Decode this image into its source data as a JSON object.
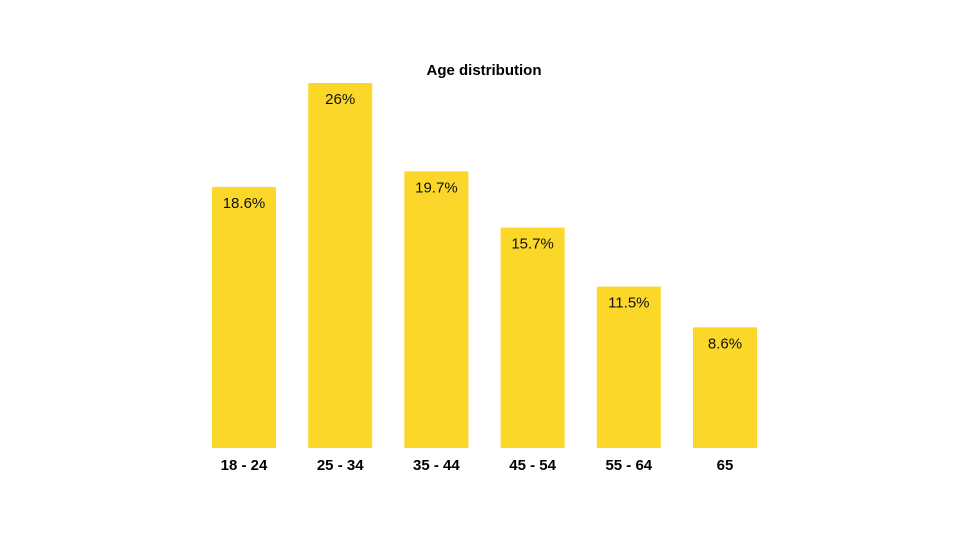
{
  "chart_data": {
    "type": "bar",
    "title": "Age distribution",
    "xlabel": "",
    "ylabel": "",
    "categories": [
      "18 - 24",
      "25 - 34",
      "35 - 44",
      "45 - 54",
      "55 - 64",
      "65"
    ],
    "values": [
      18.6,
      26,
      19.7,
      15.7,
      11.5,
      8.6
    ],
    "value_labels": [
      "18.6%",
      "26%",
      "19.7%",
      "15.7%",
      "11.5%",
      "8.6%"
    ],
    "ylim": [
      0,
      26
    ],
    "grid": false,
    "legend": "none",
    "bar_color": "#FBD72A"
  }
}
